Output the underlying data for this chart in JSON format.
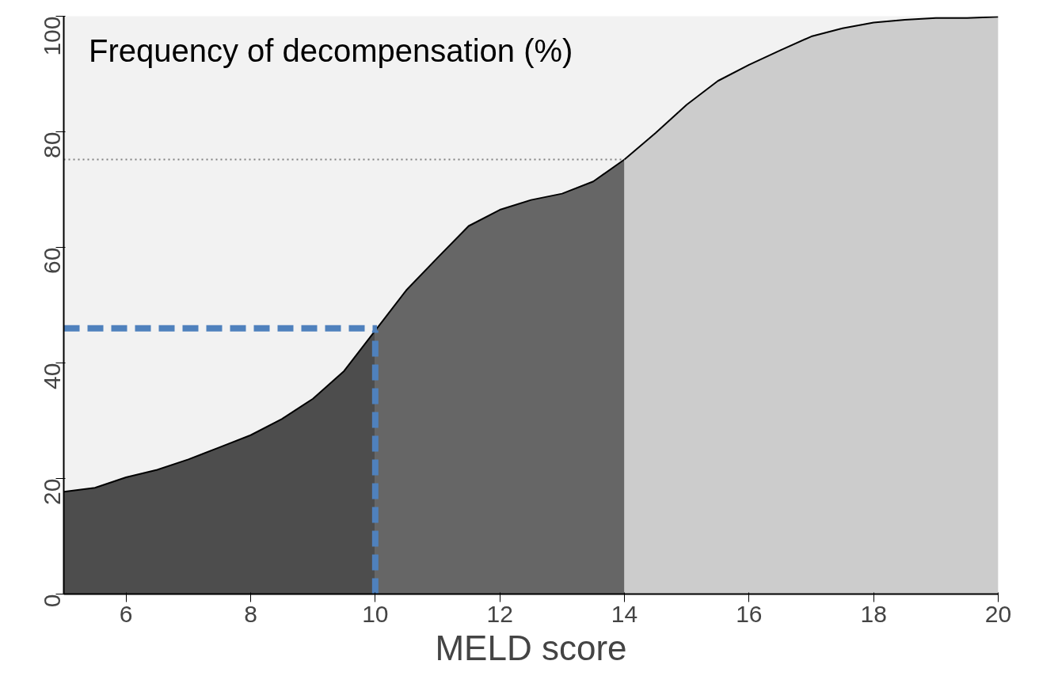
{
  "chart_data": {
    "type": "area",
    "title": "Frequency of decompensation (%)",
    "xlabel": "MELD score",
    "xlim": [
      5,
      20
    ],
    "xticks": [
      6,
      8,
      10,
      12,
      14,
      16,
      18,
      20
    ],
    "ylim": [
      0,
      100
    ],
    "yticks": [
      0,
      20,
      40,
      60,
      80,
      100
    ],
    "grid": false,
    "series": [
      {
        "color": "#4d4d4d",
        "x": [
          5,
          5.5,
          6,
          6.5,
          7,
          7.5,
          8,
          8.5,
          9,
          9.5,
          10
        ],
        "values": [
          17.7,
          18.4,
          20.2,
          21.5,
          23.3,
          25.4,
          27.5,
          30.3,
          33.8,
          38.6,
          45.6
        ]
      },
      {
        "color": "#666666",
        "x": [
          10,
          10.5,
          11,
          11.5,
          12,
          12.5,
          13,
          13.5,
          14
        ],
        "values": [
          45.6,
          52.6,
          58.2,
          63.7,
          66.5,
          68.2,
          69.3,
          71.4,
          75.2
        ]
      },
      {
        "color": "#cccccc",
        "x": [
          14,
          14.5,
          15,
          15.5,
          16,
          16.5,
          17,
          17.5,
          18,
          18.5,
          19,
          19.5,
          20
        ],
        "values": [
          75.2,
          79.8,
          84.7,
          88.8,
          91.6,
          94.1,
          96.5,
          97.9,
          98.9,
          99.4,
          99.7,
          99.7,
          99.9
        ]
      }
    ],
    "ref_lines": [
      {
        "axis": "y",
        "value": 75.2,
        "color": "#808080",
        "line_style": "dotted"
      },
      {
        "axis": "y",
        "value": 46,
        "color": "#4f81bd",
        "line_style": "dashed"
      },
      {
        "axis": "x",
        "value": 10,
        "color": "#4f81bd",
        "line_style": "dashed"
      }
    ]
  }
}
